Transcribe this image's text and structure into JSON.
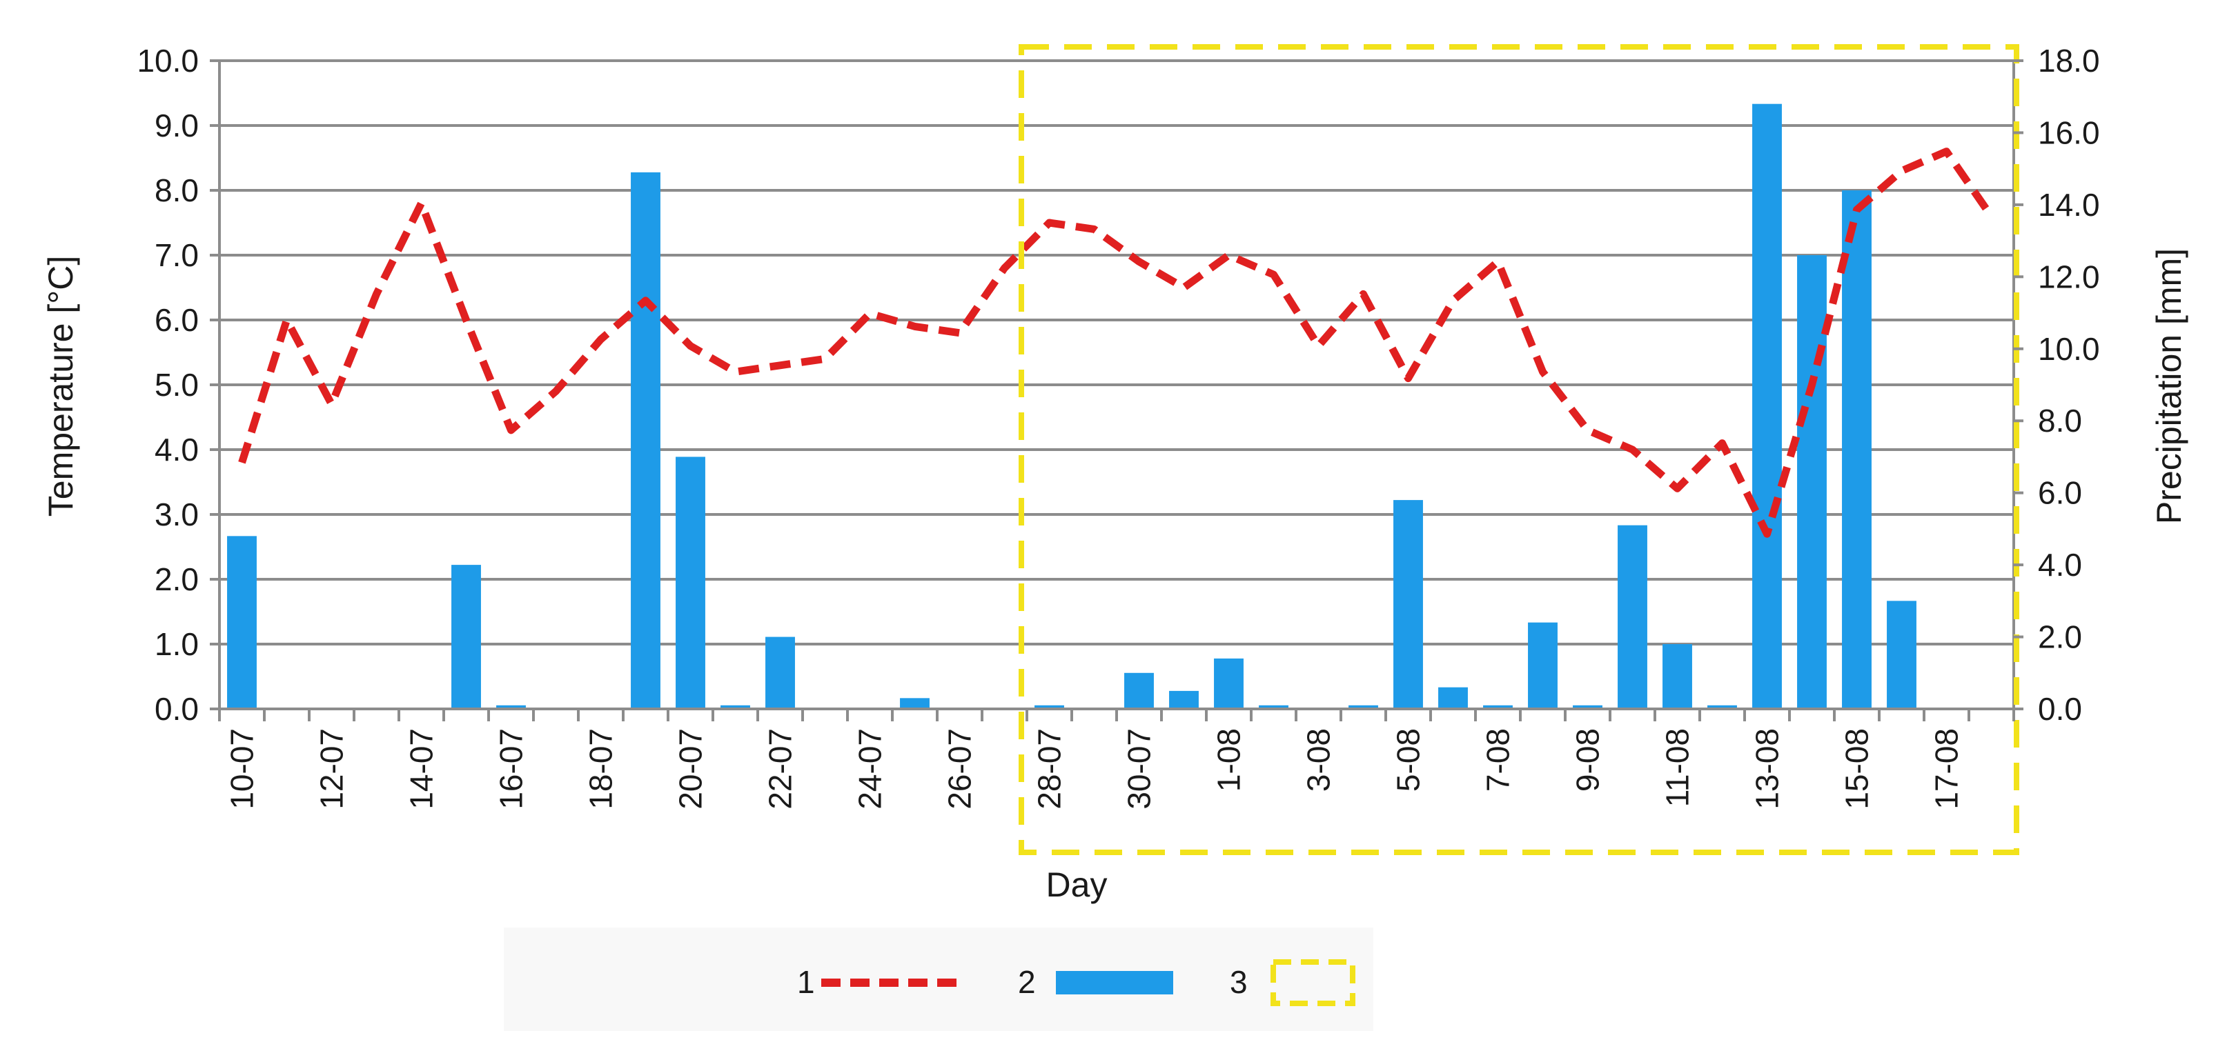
{
  "chart_data": {
    "type": "bar+line",
    "title": "",
    "xlabel": "Day",
    "ylabel_left": "Temperature [°C]",
    "ylabel_right": "Precipitation [mm]",
    "ylim_left": [
      0,
      10
    ],
    "ylim_right": [
      0,
      18
    ],
    "yticks_left": [
      "0.0",
      "1.0",
      "2.0",
      "3.0",
      "4.0",
      "5.0",
      "6.0",
      "7.0",
      "8.0",
      "9.0",
      "10.0"
    ],
    "yticks_right": [
      "0.0",
      "2.0",
      "4.0",
      "6.0",
      "8.0",
      "10.0",
      "12.0",
      "14.0",
      "16.0",
      "18.0"
    ],
    "grid": true,
    "categories": [
      "10-07",
      "11-07",
      "12-07",
      "13-07",
      "14-07",
      "15-07",
      "16-07",
      "17-07",
      "18-07",
      "19-07",
      "20-07",
      "21-07",
      "22-07",
      "23-07",
      "24-07",
      "25-07",
      "26-07",
      "27-07",
      "28-07",
      "29-07",
      "30-07",
      "31-07",
      "1-08",
      "2-08",
      "3-08",
      "4-08",
      "5-08",
      "6-08",
      "7-08",
      "8-08",
      "9-08",
      "10-08",
      "11-08",
      "12-08",
      "13-08",
      "14-08",
      "15-08",
      "16-08",
      "17-08",
      "18-08"
    ],
    "xtick_labels": [
      "10-07",
      "",
      "12-07",
      "",
      "14-07",
      "",
      "16-07",
      "",
      "18-07",
      "",
      "20-07",
      "",
      "22-07",
      "",
      "24-07",
      "",
      "26-07",
      "",
      "28-07",
      "",
      "30-07",
      "",
      "1-08",
      "",
      "3-08",
      "",
      "5-08",
      "",
      "7-08",
      "",
      "9-08",
      "",
      "11-08",
      "",
      "13-08",
      "",
      "15-08",
      "",
      "17-08",
      ""
    ],
    "series": [
      {
        "key": "temperature",
        "label": "1",
        "type": "line",
        "axis": "left",
        "color": "#e02020",
        "values": [
          3.8,
          6.0,
          4.7,
          6.4,
          7.8,
          6.0,
          4.3,
          4.9,
          5.7,
          6.3,
          5.6,
          5.2,
          5.3,
          5.4,
          6.1,
          5.9,
          5.8,
          6.8,
          7.5,
          7.4,
          6.9,
          6.5,
          7.0,
          6.7,
          5.6,
          6.4,
          5.1,
          6.3,
          6.9,
          5.2,
          4.3,
          4.0,
          3.4,
          4.1,
          2.7,
          5.0,
          7.7,
          8.3,
          8.6,
          7.6
        ]
      },
      {
        "key": "precipitation",
        "label": "2",
        "type": "bar",
        "axis": "right",
        "color": "#1e9be8",
        "values": [
          4.8,
          0,
          0,
          0,
          0,
          4.0,
          0.1,
          0,
          0,
          14.9,
          7.0,
          0.1,
          2.0,
          0,
          0,
          0.3,
          0,
          0,
          0.1,
          0,
          1.0,
          0.5,
          1.4,
          0.1,
          0,
          0.1,
          5.8,
          0.6,
          0.1,
          2.4,
          0.1,
          5.1,
          1.8,
          0.1,
          16.8,
          12.6,
          14.4,
          3.0,
          0,
          0
        ]
      }
    ],
    "highlight": {
      "label": "3",
      "color": "#f2e21b",
      "from": "28-07",
      "to": "18-08"
    },
    "legend_position": "bottom-center"
  }
}
